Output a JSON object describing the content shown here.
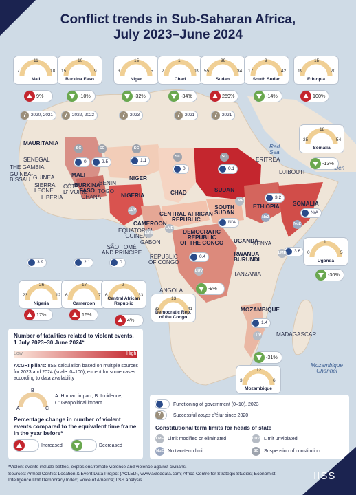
{
  "title_line1": "Conflict trends in Sub-Saharan Africa,",
  "title_line2": "July 2023–June 2024",
  "colors": {
    "sea": "#cfdbe6",
    "land": "#efe5d8",
    "highest": "#c4262e",
    "low": "#f6d6c6",
    "navy": "#1b2350",
    "decrease": "#6aa84f",
    "increase": "#c4262e"
  },
  "country_labels": {
    "mauritania": "MAURITANIA",
    "senegal": "SENEGAL",
    "gambia": "THE GAMBIA",
    "guinea_bissau": "GUINEA-\nBISSAU",
    "guinea": "GUINEA",
    "sierra_leone": "SIERRA\nLEONE",
    "liberia": "LIBERIA",
    "cote_divoire": "CÔTE\nD'IVOIRE",
    "ghana": "GHANA",
    "togo": "TOGO",
    "benin": "BENIN",
    "mali": "MALI",
    "burkina": "BURKINA\nFASO",
    "niger": "NIGER",
    "nigeria": "NIGERIA",
    "chad": "CHAD",
    "sudan": "SUDAN",
    "south_sudan": "SOUTH\nSUDAN",
    "eritrea": "ERITREA",
    "djibouti": "DJIBOUTI",
    "ethiopia": "ETHIOPIA",
    "somalia": "SOMALIA",
    "car": "CENTRAL AFRICAN\nREPUBLIC",
    "cameroon": "CAMEROON",
    "eq_guinea": "EQUATORIAL\nGUINEA",
    "gabon": "GABON",
    "sao_tome": "SÃO TOMÉ\nAND PRINCIPE",
    "congo": "REPUBLIC\nOF CONGO",
    "drc": "DEMOCRATIC\nREPUBLIC\nOF THE CONGO",
    "uganda": "UGANDA",
    "kenya": "KENYA",
    "rwanda_burundi": "RWANDA\nBURUNDI",
    "tanzania": "TANZANIA",
    "angola": "ANGOLA",
    "mozambique": "MOZAMBIQUE",
    "madagascar": "MADAGASCAR"
  },
  "sea_labels": {
    "red_sea": "Red\nSea",
    "gulf_aden": "Gulf of Aden",
    "moz_channel": "Mozambique\nChannel"
  },
  "cards": [
    {
      "name": "Mali",
      "a": "7",
      "b": "11",
      "c": "18"
    },
    {
      "name": "Burkina Faso",
      "a": "15",
      "b": "10",
      "c": "9"
    },
    {
      "name": "Niger",
      "a": "3",
      "b": "15",
      "c": "5"
    },
    {
      "name": "Chad",
      "a": "2",
      "b": "1",
      "c": "19"
    },
    {
      "name": "Sudan",
      "a": "55",
      "b": "39",
      "c": "34"
    },
    {
      "name": "South Sudan",
      "a": "17",
      "b": "3",
      "c": "42"
    },
    {
      "name": "Ethiopia",
      "a": "19",
      "b": "15",
      "c": "20"
    },
    {
      "name": "Somalia",
      "a": "25",
      "b": "18",
      "c": "54"
    },
    {
      "name": "Uganda",
      "a": "0",
      "b": "1",
      "c": "5"
    },
    {
      "name": "Nigeria",
      "a": "23",
      "b": "26",
      "c": "12"
    },
    {
      "name": "Cameroon",
      "a": "6",
      "b": "17",
      "c": "7"
    },
    {
      "name": "Central African\nRepublic",
      "a": "6",
      "b": "2",
      "c": "33"
    },
    {
      "name": "Democratic Rep.\nof the Congo",
      "a": "33",
      "b": "13",
      "c": "41"
    },
    {
      "name": "Mozambique",
      "a": "3",
      "b": "12",
      "c": "6"
    }
  ],
  "pcts": [
    {
      "country": "Mali",
      "value": "9%",
      "dir": "up"
    },
    {
      "country": "Burkina Faso",
      "value": "-10%",
      "dir": "down"
    },
    {
      "country": "Niger",
      "value": "-32%",
      "dir": "down"
    },
    {
      "country": "Chad",
      "value": "-34%",
      "dir": "down"
    },
    {
      "country": "Sudan",
      "value": "259%",
      "dir": "up"
    },
    {
      "country": "South Sudan",
      "value": "-14%",
      "dir": "down"
    },
    {
      "country": "Ethiopia",
      "value": "100%",
      "dir": "up"
    },
    {
      "country": "Somalia",
      "value": "-13%",
      "dir": "down"
    },
    {
      "country": "Uganda",
      "value": "-30%",
      "dir": "down"
    },
    {
      "country": "Nigeria",
      "value": "17%",
      "dir": "up"
    },
    {
      "country": "Cameroon",
      "value": "16%",
      "dir": "up"
    },
    {
      "country": "Central African Republic",
      "value": "4%",
      "dir": "up"
    },
    {
      "country": "DRC",
      "value": "-9%",
      "dir": "down"
    },
    {
      "country": "Mozambique",
      "value": "-31%",
      "dir": "down"
    }
  ],
  "coups": [
    {
      "country": "Mali",
      "years": "2020, 2021"
    },
    {
      "country": "Burkina Faso",
      "years": "2022, 2022"
    },
    {
      "country": "Niger",
      "years": "2023"
    },
    {
      "country": "Chad",
      "years": "2021"
    },
    {
      "country": "Sudan",
      "years": "2021"
    }
  ],
  "gov": [
    {
      "country": "Mali",
      "value": "0"
    },
    {
      "country": "Burkina Faso",
      "value": "2.5"
    },
    {
      "country": "Niger",
      "value": "1.1"
    },
    {
      "country": "Chad",
      "value": "0"
    },
    {
      "country": "Sudan",
      "value": "0.1"
    },
    {
      "country": "South Sudan",
      "value": "N/A"
    },
    {
      "country": "Ethiopia",
      "value": "3.2"
    },
    {
      "country": "Somalia",
      "value": "N/A"
    },
    {
      "country": "Uganda",
      "value": "3.6"
    },
    {
      "country": "Nigeria",
      "value": "3.9"
    },
    {
      "country": "Cameroon",
      "value": "2.1"
    },
    {
      "country": "Central African Republic",
      "value": "0"
    },
    {
      "country": "DRC",
      "value": "0.4"
    },
    {
      "country": "Mozambique",
      "value": "1.4"
    }
  ],
  "badges": [
    {
      "country": "Mali",
      "code": "SC"
    },
    {
      "country": "Burkina Faso",
      "code": "SC"
    },
    {
      "country": "Niger",
      "code": "SC"
    },
    {
      "country": "Chad",
      "code": "SC"
    },
    {
      "country": "Sudan",
      "code": "SC"
    },
    {
      "country": "South Sudan",
      "code": "LME"
    },
    {
      "country": "Ethiopia",
      "code": "NoZ"
    },
    {
      "country": "Somalia",
      "code": "NoZ"
    },
    {
      "country": "Uganda",
      "code": "LME"
    },
    {
      "country": "Nigeria",
      "code": "LUV"
    },
    {
      "country": "Cameroon",
      "code": "LME"
    },
    {
      "country": "Central African Republic",
      "code": "LME"
    },
    {
      "country": "DRC",
      "code": "LUV"
    },
    {
      "country": "Mozambique",
      "code": "LUV"
    }
  ],
  "legend": {
    "fatal_title": "Number of fatalities related to violent events,\n1 July 2023–30 June 2024*",
    "low": "Low",
    "high": "High",
    "acgri_bold": "ACGRI pillars:",
    "acgri_text": " IISS calculation based on multiple sources for 2023 and 2024 (scale: 0–100), except for some cases according to data availability",
    "a": "A",
    "b": "B",
    "c": "C",
    "a_desc": "A: Human impact; B: Incidence;",
    "c_desc": "C: Geopolitical impact",
    "pct_title": "Percentage change in number of violent events compared to the equivalent time frame in the year before*",
    "increased": "Increased",
    "decreased": "Decreased"
  },
  "legend2": {
    "gov": "Functioning of government (0–10), 2023",
    "coup_pre": "Successful ",
    "coup_italic": "coups d'état",
    "coup_post": " since 2020",
    "term_title": "Constitutional term limits for heads of state",
    "lme": "LME",
    "lme_desc": "Limit modified or eliminated",
    "luv": "LUV",
    "luv_desc": "Limit unviolated",
    "noz": "NoZ",
    "noz_desc": "No two-term limit",
    "sc": "SC",
    "sc_desc": "Suspension of constitution"
  },
  "footer": {
    "note": "*Violent events include battles, explosions/remote violence and violence against civilians.",
    "sources": "Sources: Armed Conflict Location & Event Data Project (ACLED), www.acleddata.com; Africa Centre for Strategic Studies; Economist Intelligence Unit Democracy Index; Voice of America; IISS analysis"
  },
  "logo": "IISS"
}
